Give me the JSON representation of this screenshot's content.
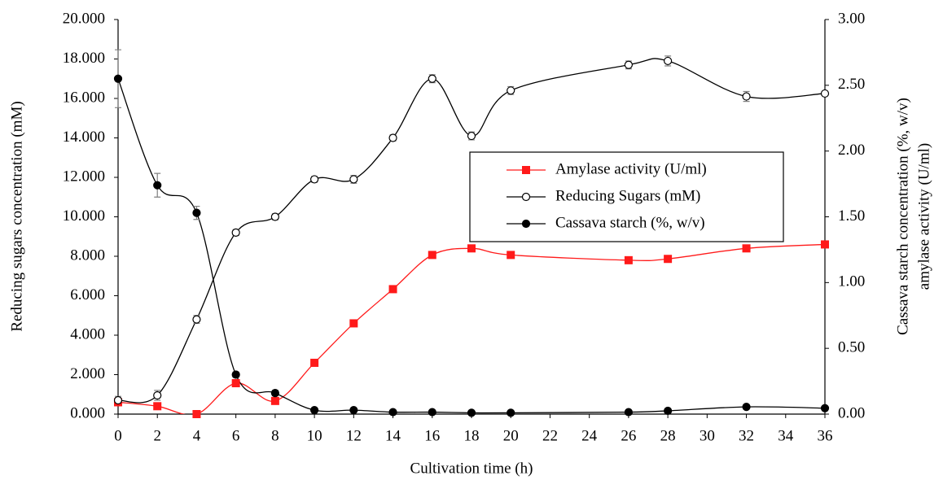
{
  "chart_data": {
    "type": "line",
    "xlabel": "Cultivation time (h)",
    "ylabel": "Reducing sugars concentration (mM)",
    "y2label": [
      "Cassava starch concentration (%, w/v)",
      "amylase activity (U/ml)"
    ],
    "x": [
      0,
      2,
      4,
      6,
      8,
      10,
      12,
      14,
      16,
      18,
      20,
      26,
      28,
      32,
      36
    ],
    "xlim": [
      0,
      36
    ],
    "xticks": [
      0,
      2,
      4,
      6,
      8,
      10,
      12,
      14,
      16,
      18,
      20,
      22,
      24,
      26,
      28,
      30,
      32,
      34,
      36
    ],
    "ylim": [
      0,
      20
    ],
    "yticks": [
      {
        "value": 0,
        "label": "0.000"
      },
      {
        "value": 2,
        "label": "2.000"
      },
      {
        "value": 4,
        "label": "4.000"
      },
      {
        "value": 6,
        "label": "6.000"
      },
      {
        "value": 8,
        "label": "8.000"
      },
      {
        "value": 10,
        "label": "10.000"
      },
      {
        "value": 12,
        "label": "12.000"
      },
      {
        "value": 14,
        "label": "14.000"
      },
      {
        "value": 16,
        "label": "16.000"
      },
      {
        "value": 18,
        "label": "18.000"
      },
      {
        "value": 20,
        "label": "20.000"
      }
    ],
    "y2lim": [
      0,
      3
    ],
    "y2ticks": [
      {
        "value": 0,
        "label": "0.00"
      },
      {
        "value": 0.5,
        "label": "0.50"
      },
      {
        "value": 1,
        "label": "1.00"
      },
      {
        "value": 1.5,
        "label": "1.50"
      },
      {
        "value": 2,
        "label": "2.00"
      },
      {
        "value": 2.5,
        "label": "2.50"
      },
      {
        "value": 3,
        "label": "3.00"
      }
    ],
    "smooth": true,
    "series": [
      {
        "name": "Amylase activity (U/ml)",
        "color": "#ff1a1a",
        "marker": "square",
        "axis": "y2",
        "values": [
          0.09,
          0.06,
          0,
          0.235,
          0.1,
          0.39,
          0.69,
          0.95,
          1.21,
          1.26,
          1.21,
          1.17,
          1.18,
          1.26,
          1.29
        ]
      },
      {
        "name": "Reducing Sugars (mM)",
        "color": "#000000",
        "marker": "circle-open",
        "values": [
          0.7,
          0.95,
          4.8,
          9.2,
          10.0,
          11.9,
          11.9,
          14.0,
          17.0,
          14.1,
          16.4,
          17.7,
          17.9,
          16.1,
          16.25
        ],
        "errors": [
          0.2,
          0.25,
          0.2,
          0.15,
          0.15,
          0.15,
          0.2,
          0.15,
          0.2,
          0.2,
          0.2,
          0.2,
          0.25,
          0.25,
          0.1
        ]
      },
      {
        "name": "Cassava starch (%, w/v)",
        "color": "#000000",
        "marker": "circle",
        "axis": "y2",
        "values": [
          2.55,
          1.74,
          1.53,
          0.3,
          0.16,
          0.03,
          0.03,
          0.015,
          0.015,
          0.01,
          0.01,
          0.015,
          0.025,
          0.055,
          0.045
        ],
        "errors": [
          0.22,
          0.09,
          0.05,
          0.02,
          0.02,
          0.01,
          0.01,
          0.01,
          0.01,
          0.01,
          0.01,
          0.01,
          0.01,
          0.01,
          0.01
        ]
      }
    ]
  }
}
